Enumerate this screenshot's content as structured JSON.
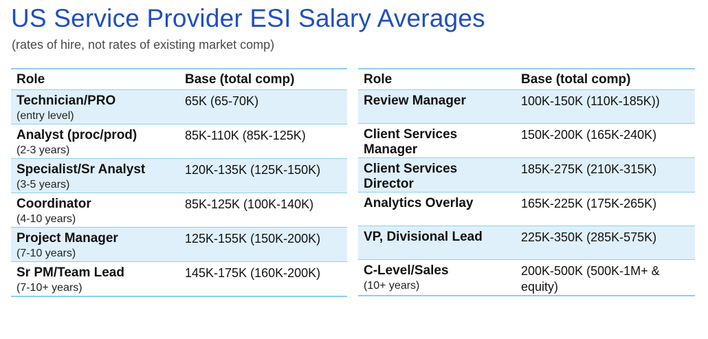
{
  "title": "US Service Provider ESI Salary Averages",
  "subtitle": "(rates of hire, not rates of existing market comp)",
  "left_table": {
    "headers": {
      "role": "Role",
      "base": "Base (total comp)"
    },
    "rows": [
      {
        "role": "Technician/PRO",
        "sub": "(entry level)",
        "base": "65K (65-70K)"
      },
      {
        "role": "Analyst (proc/prod)",
        "sub": "(2-3 years)",
        "base": "85K-110K (85K-125K)"
      },
      {
        "role": "Specialist/Sr Analyst",
        "sub": "(3-5 years)",
        "base": "120K-135K (125K-150K)"
      },
      {
        "role": "Coordinator",
        "sub": "(4-10 years)",
        "base": "85K-125K (100K-140K)"
      },
      {
        "role": "Project Manager",
        "sub": "(7-10 years)",
        "base": "125K-155K (150K-200K)"
      },
      {
        "role": "Sr PM/Team Lead",
        "sub": "(7-10+ years)",
        "base": "145K-175K (160K-200K)"
      }
    ]
  },
  "right_table": {
    "headers": {
      "role": "Role",
      "base": "Base (total comp)"
    },
    "rows": [
      {
        "role": "Review Manager",
        "role2": "",
        "sub": "",
        "base": "100K-150K (110K-185K))"
      },
      {
        "role": "Client Services",
        "role2": "Manager",
        "sub": "",
        "base": "150K-200K (165K-240K)"
      },
      {
        "role": "Client Services",
        "role2": "Director",
        "sub": "",
        "base": "185K-275K (210K-315K)"
      },
      {
        "role": "Analytics Overlay",
        "role2": "",
        "sub": "",
        "base": "165K-225K (175K-265K)"
      },
      {
        "role": "VP, Divisional Lead",
        "role2": "",
        "sub": "",
        "base": "225K-350K (285K-575K)"
      },
      {
        "role": "C-Level/Sales",
        "role2": "",
        "sub": "(10+ years)",
        "base": "200K-500K (500K-1M+ & equity)"
      }
    ]
  }
}
